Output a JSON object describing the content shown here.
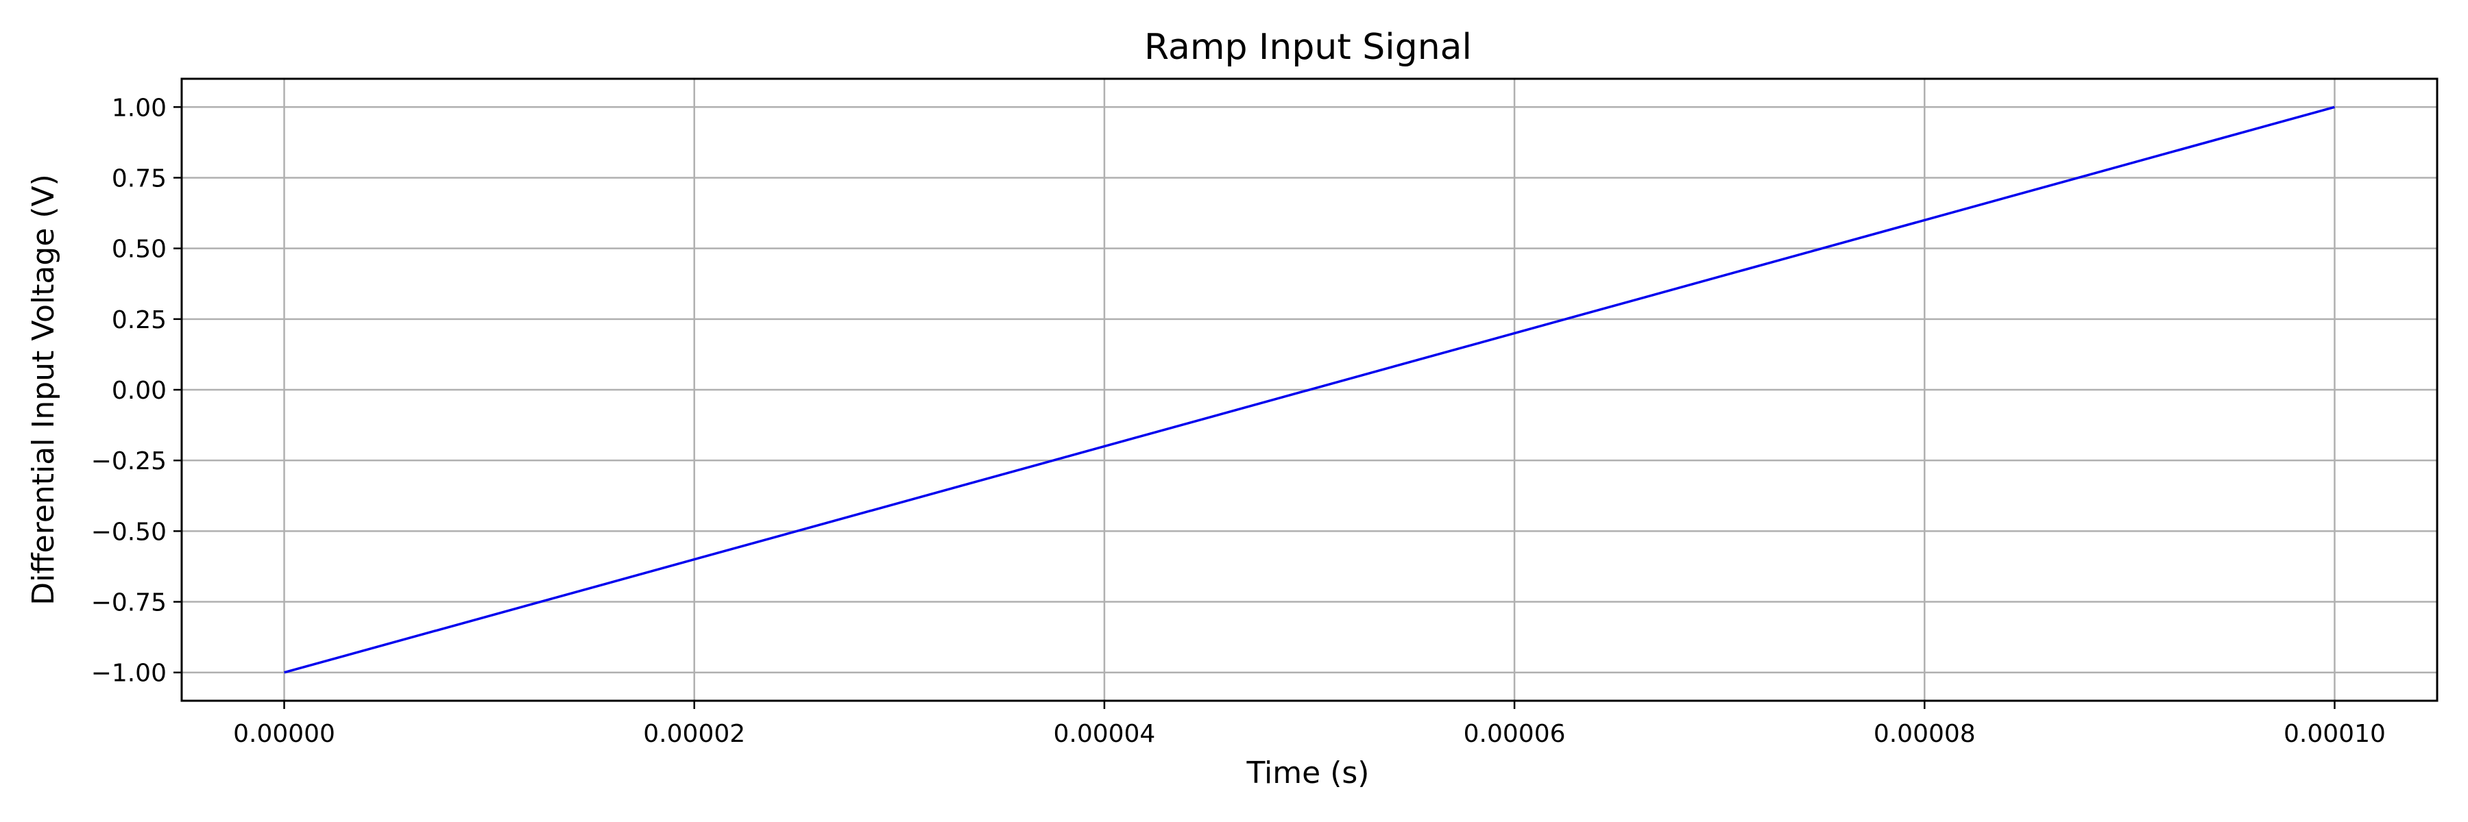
{
  "chart_data": {
    "type": "line",
    "title": "Ramp Input Signal",
    "xlabel": "Time (s)",
    "ylabel": "Differential Input Voltage (V)",
    "xlim": [
      -5e-06,
      0.000105
    ],
    "ylim": [
      -1.1,
      1.1
    ],
    "xticks": [
      0,
      2e-05,
      4e-05,
      6e-05,
      8e-05,
      0.0001
    ],
    "xtick_labels": [
      "0.00000",
      "0.00002",
      "0.00004",
      "0.00006",
      "0.00008",
      "0.00010"
    ],
    "yticks": [
      -1,
      -0.75,
      -0.5,
      -0.25,
      0,
      0.25,
      0.5,
      0.75,
      1
    ],
    "ytick_labels": [
      "−1.00",
      "−0.75",
      "−0.50",
      "−0.25",
      "0.00",
      "0.25",
      "0.50",
      "0.75",
      "1.00"
    ],
    "grid": true,
    "series": [
      {
        "color": "#0000ee",
        "x": [
          0,
          0.0001
        ],
        "y": [
          -1,
          1
        ]
      }
    ]
  }
}
